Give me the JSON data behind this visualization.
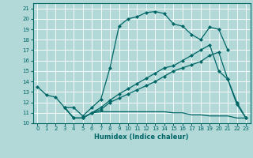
{
  "xlabel": "Humidex (Indice chaleur)",
  "bg_color": "#b2d8d8",
  "grid_color": "#ffffff",
  "line_color": "#006666",
  "xlim": [
    -0.5,
    23.5
  ],
  "ylim": [
    10,
    21.5
  ],
  "yticks": [
    10,
    11,
    12,
    13,
    14,
    15,
    16,
    17,
    18,
    19,
    20,
    21
  ],
  "xticks": [
    0,
    1,
    2,
    3,
    4,
    5,
    6,
    7,
    8,
    9,
    10,
    11,
    12,
    13,
    14,
    15,
    16,
    17,
    18,
    19,
    20,
    21,
    22,
    23
  ],
  "s1_x": [
    0,
    1,
    2,
    3,
    4,
    5,
    6,
    7,
    8,
    9,
    10,
    11,
    12,
    13,
    14,
    15,
    16,
    17,
    18,
    19,
    20,
    21
  ],
  "s1_y": [
    13.5,
    12.7,
    12.5,
    11.5,
    11.5,
    10.7,
    11.5,
    12.3,
    15.3,
    19.3,
    20.0,
    20.2,
    20.6,
    20.7,
    20.5,
    19.5,
    19.3,
    18.5,
    18.0,
    19.2,
    19.0,
    17.0
  ],
  "s2_x": [
    3,
    4,
    5,
    6,
    7,
    8,
    9,
    10,
    11,
    12,
    13,
    14,
    15,
    16,
    17,
    18,
    19,
    20,
    21,
    22,
    23
  ],
  "s2_y": [
    11.5,
    10.5,
    10.5,
    11.0,
    11.1,
    11.1,
    11.1,
    11.1,
    11.1,
    11.1,
    11.1,
    11.1,
    11.0,
    11.0,
    10.8,
    10.8,
    10.7,
    10.7,
    10.7,
    10.5,
    10.5
  ],
  "s3_x": [
    3,
    4,
    5,
    6,
    7,
    8,
    9,
    10,
    11,
    12,
    13,
    14,
    15,
    16,
    17,
    18,
    19,
    20,
    21,
    22,
    23
  ],
  "s3_y": [
    11.5,
    10.5,
    10.5,
    11.0,
    11.5,
    12.2,
    12.8,
    13.3,
    13.8,
    14.3,
    14.8,
    15.3,
    15.5,
    16.0,
    16.5,
    17.0,
    17.5,
    15.0,
    14.2,
    12.0,
    10.5
  ],
  "s4_x": [
    3,
    4,
    5,
    6,
    7,
    8,
    9,
    10,
    11,
    12,
    13,
    14,
    15,
    16,
    17,
    18,
    19,
    20,
    21,
    22,
    23
  ],
  "s4_y": [
    11.5,
    10.5,
    10.5,
    11.0,
    11.3,
    12.0,
    12.4,
    12.8,
    13.2,
    13.6,
    14.0,
    14.5,
    15.0,
    15.3,
    15.6,
    15.9,
    16.5,
    16.8,
    14.2,
    11.8,
    10.5
  ]
}
